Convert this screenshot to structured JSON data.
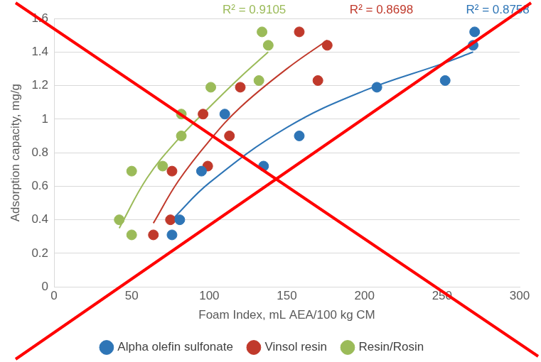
{
  "chart_data": {
    "type": "scatter",
    "x_label": "Foam Index, mL AEA/100 kg CM",
    "y_label": "Adsorption capacity, mg/g",
    "xlim": [
      0,
      300
    ],
    "xticks": [
      0,
      50,
      100,
      150,
      200,
      250,
      300
    ],
    "ylim": [
      0,
      1.6
    ],
    "yticks": [
      0,
      0.2,
      0.4,
      0.6,
      0.8,
      1,
      1.2,
      1.4,
      1.6
    ],
    "grid": "y",
    "legend": "bottom",
    "series": [
      {
        "name": "Alpha olefin sulfonate",
        "color": "#2e75b6",
        "marker": "circle",
        "annotation": "R² = 0.8758",
        "x": [
          76,
          81,
          95,
          110,
          135,
          158,
          208,
          252,
          270,
          271
        ],
        "values": [
          0.31,
          0.4,
          0.69,
          1.03,
          0.72,
          0.9,
          1.19,
          1.23,
          1.44,
          1.52
        ],
        "trend": {
          "x": [
            76,
            100,
            150,
            200,
            250,
            270
          ],
          "values": [
            0.4,
            0.62,
            0.95,
            1.17,
            1.33,
            1.4
          ]
        }
      },
      {
        "name": "Vinsol resin",
        "color": "#c0392b",
        "marker": "circle",
        "annotation": "R² = 0.8698",
        "x": [
          64,
          75,
          76,
          99,
          96,
          113,
          120,
          158,
          170,
          176
        ],
        "values": [
          0.31,
          0.4,
          0.69,
          0.72,
          1.03,
          0.9,
          1.19,
          1.52,
          1.23,
          1.44
        ],
        "trend": {
          "x": [
            64,
            80,
            100,
            120,
            150,
            176
          ],
          "values": [
            0.38,
            0.63,
            0.87,
            1.07,
            1.3,
            1.47
          ]
        }
      },
      {
        "name": "Resin/Rosin",
        "color": "#9bbb59",
        "marker": "circle",
        "annotation": "R² = 0.9105",
        "x": [
          42,
          50,
          50,
          70,
          82,
          82,
          101,
          132,
          134,
          138
        ],
        "values": [
          0.4,
          0.31,
          0.69,
          0.72,
          1.03,
          0.9,
          1.19,
          1.23,
          1.52,
          1.44
        ],
        "trend": {
          "x": [
            42,
            60,
            80,
            100,
            120,
            138
          ],
          "values": [
            0.35,
            0.65,
            0.88,
            1.07,
            1.25,
            1.4
          ]
        }
      }
    ]
  }
}
